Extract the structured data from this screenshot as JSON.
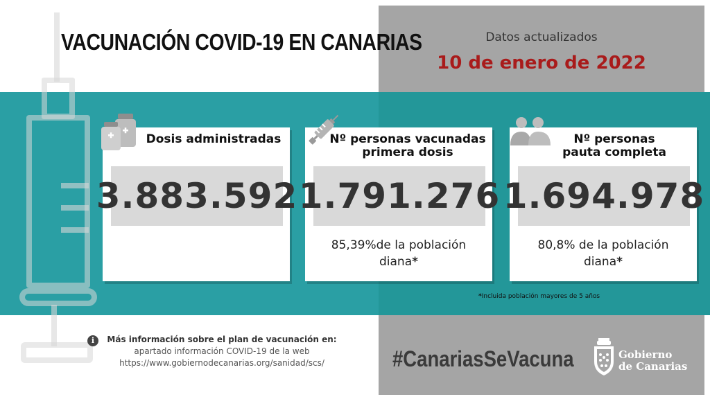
{
  "header": {
    "title": "VACUNACIÓN COVID-19 EN CANARIAS",
    "updated_label": "Datos actualizados",
    "updated_date": "10 de enero de 2022"
  },
  "cards": [
    {
      "title": "Dosis administradas",
      "value": "3.883.592",
      "icon": "medicine-bottles-icon"
    },
    {
      "title_line1": "Nº personas vacunadas",
      "title_line2": "primera dosis",
      "value": "1.791.276",
      "pct_line1": "85,39%de la población",
      "pct_line2": "diana",
      "asterisk": "*",
      "icon": "syringe-icon"
    },
    {
      "title_line1": "Nº personas",
      "title_line2": "pauta completa",
      "value": "1.694.978",
      "pct_line1": "80,8% de la población",
      "pct_line2": "diana",
      "asterisk": "*",
      "icon": "people-icon"
    }
  ],
  "footnote": {
    "star": "*",
    "text": "Incluida población mayores de 5 años"
  },
  "info": {
    "icon": "info-icon",
    "line1": "Más información sobre el plan de vacunación en:",
    "line2": "apartado información COVID-19 de la web",
    "line3": "https://www.gobiernodecanarias.org/sanidad/scs/"
  },
  "hashtag": "#CanariasSeVacuna",
  "logo": {
    "line1": "Gobierno",
    "line2": "de Canarias",
    "icon": "coat-of-arms-icon"
  },
  "colors": {
    "teal": "#2a9fa4",
    "gray_panel": "#a5a5a5",
    "date_red": "#a91b1b",
    "number_box": "#d9d9d9"
  }
}
